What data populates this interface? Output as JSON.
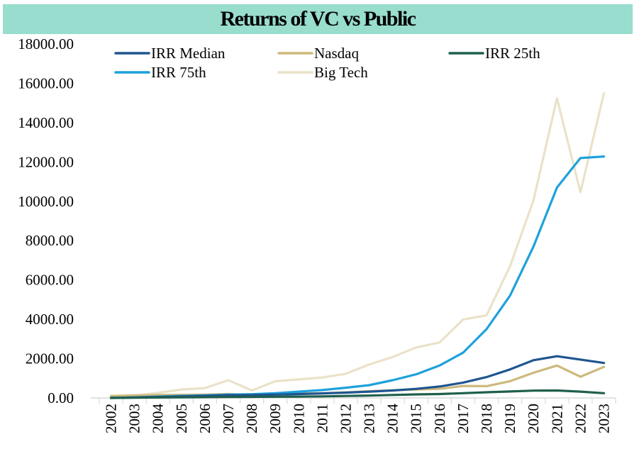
{
  "chart_data": {
    "type": "line",
    "title": "Returns of VC vs Public",
    "xlabel": "",
    "ylabel": "",
    "x": [
      "2002",
      "2003",
      "2004",
      "2005",
      "2006",
      "2007",
      "2008",
      "2009",
      "2010",
      "2011",
      "2012",
      "2013",
      "2014",
      "2015",
      "2016",
      "2017",
      "2018",
      "2019",
      "2020",
      "2021",
      "2022",
      "2023"
    ],
    "yticks": [
      "0.00",
      "2000.00",
      "4000.00",
      "6000.00",
      "8000.00",
      "10000.00",
      "12000.00",
      "14000.00",
      "16000.00",
      "18000.00"
    ],
    "ylim": [
      0,
      18000
    ],
    "grid": false,
    "legend_position": "top",
    "series": [
      {
        "name": "IRR Median",
        "color": "#1f5591",
        "values": [
          0,
          20,
          50,
          80,
          110,
          140,
          150,
          170,
          200,
          230,
          270,
          320,
          380,
          460,
          580,
          780,
          1060,
          1450,
          1920,
          2120,
          1950,
          1780
        ]
      },
      {
        "name": "Nasdaq",
        "color": "#cdb97c",
        "values": [
          100,
          130,
          150,
          160,
          170,
          200,
          140,
          190,
          220,
          240,
          280,
          340,
          390,
          430,
          460,
          610,
          600,
          850,
          1280,
          1650,
          1080,
          1580
        ]
      },
      {
        "name": "IRR 25th",
        "color": "#1f5f4d",
        "values": [
          0,
          10,
          20,
          30,
          40,
          50,
          55,
          60,
          70,
          80,
          100,
          120,
          150,
          180,
          200,
          240,
          290,
          330,
          370,
          380,
          320,
          240
        ]
      },
      {
        "name": "IRR 75th",
        "color": "#1ea1dc",
        "values": [
          0,
          30,
          70,
          100,
          130,
          170,
          190,
          240,
          320,
          400,
          520,
          650,
          900,
          1200,
          1650,
          2300,
          3500,
          5200,
          7700,
          10700,
          12200,
          12280
        ]
      },
      {
        "name": "Big Tech",
        "color": "#eae2c8",
        "values": [
          100,
          120,
          260,
          430,
          500,
          900,
          380,
          850,
          940,
          1040,
          1230,
          1700,
          2080,
          2570,
          2820,
          3990,
          4200,
          6700,
          10050,
          15240,
          10460,
          15490
        ]
      }
    ]
  }
}
